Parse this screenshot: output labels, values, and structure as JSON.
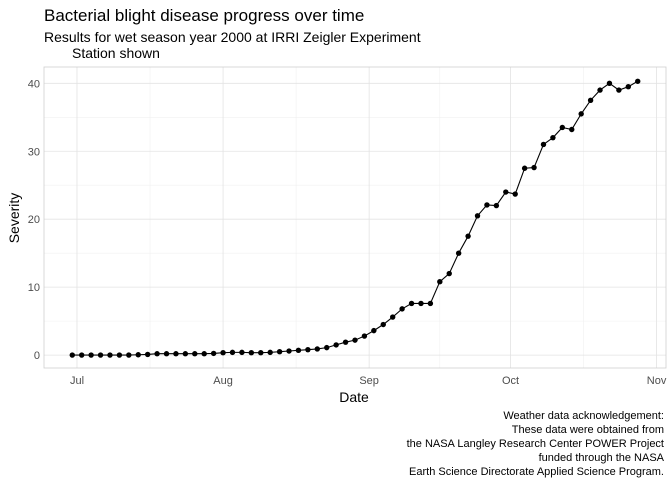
{
  "chart_data": {
    "type": "line",
    "title": "Bacterial blight disease progress over time",
    "subtitle_lines": [
      "Results for wet season year 2000 at IRRI Zeigler Experiment",
      "Station shown"
    ],
    "xlabel": "Date",
    "ylabel": "Severity",
    "x_ticks": [
      "Jul",
      "Aug",
      "Sep",
      "Oct",
      "Nov"
    ],
    "x_tick_dates": [
      "2000-07-01",
      "2000-08-01",
      "2000-09-01",
      "2000-10-01",
      "2000-11-01"
    ],
    "y_ticks": [
      0,
      10,
      20,
      30,
      40
    ],
    "xlim": [
      "2000-06-24",
      "2000-11-03"
    ],
    "ylim": [
      -1.9,
      42.4
    ],
    "grid": true,
    "point_color": "#000000",
    "line_color": "#000000",
    "x": [
      "2000-06-30",
      "2000-07-02",
      "2000-07-04",
      "2000-07-06",
      "2000-07-08",
      "2000-07-10",
      "2000-07-12",
      "2000-07-14",
      "2000-07-16",
      "2000-07-18",
      "2000-07-20",
      "2000-07-22",
      "2000-07-24",
      "2000-07-26",
      "2000-07-28",
      "2000-07-30",
      "2000-08-01",
      "2000-08-03",
      "2000-08-05",
      "2000-08-07",
      "2000-08-09",
      "2000-08-11",
      "2000-08-13",
      "2000-08-15",
      "2000-08-17",
      "2000-08-19",
      "2000-08-21",
      "2000-08-23",
      "2000-08-25",
      "2000-08-27",
      "2000-08-29",
      "2000-08-31",
      "2000-09-02",
      "2000-09-04",
      "2000-09-06",
      "2000-09-08",
      "2000-09-10",
      "2000-09-12",
      "2000-09-14",
      "2000-09-16",
      "2000-09-18",
      "2000-09-20",
      "2000-09-22",
      "2000-09-24",
      "2000-09-26",
      "2000-09-28",
      "2000-09-30",
      "2000-10-02",
      "2000-10-04",
      "2000-10-06",
      "2000-10-08",
      "2000-10-10",
      "2000-10-12",
      "2000-10-14",
      "2000-10-16",
      "2000-10-18",
      "2000-10-20",
      "2000-10-22",
      "2000-10-24",
      "2000-10-26",
      "2000-10-28"
    ],
    "y": [
      0.0,
      0.0,
      0.0,
      0.0,
      0.0,
      0.0,
      0.0,
      0.05,
      0.1,
      0.2,
      0.2,
      0.2,
      0.2,
      0.2,
      0.2,
      0.25,
      0.35,
      0.4,
      0.4,
      0.35,
      0.35,
      0.4,
      0.5,
      0.6,
      0.7,
      0.8,
      0.9,
      1.1,
      1.5,
      1.9,
      2.2,
      2.8,
      3.6,
      4.5,
      5.6,
      6.8,
      7.6,
      7.6,
      7.6,
      10.8,
      12.0,
      15.0,
      17.5,
      20.5,
      22.1,
      22.0,
      24.0,
      23.7,
      27.5,
      27.6,
      31.0,
      32.0,
      33.5,
      33.2,
      35.5,
      37.5,
      39.0,
      40.0,
      39.0,
      39.5,
      40.3
    ]
  },
  "caption_lines": [
    "Weather data acknowledgement:",
    "These data were obtained from",
    "the NASA Langley Research Center POWER Project",
    "funded through the NASA",
    "Earth Science Directorate Applied Science Program."
  ]
}
